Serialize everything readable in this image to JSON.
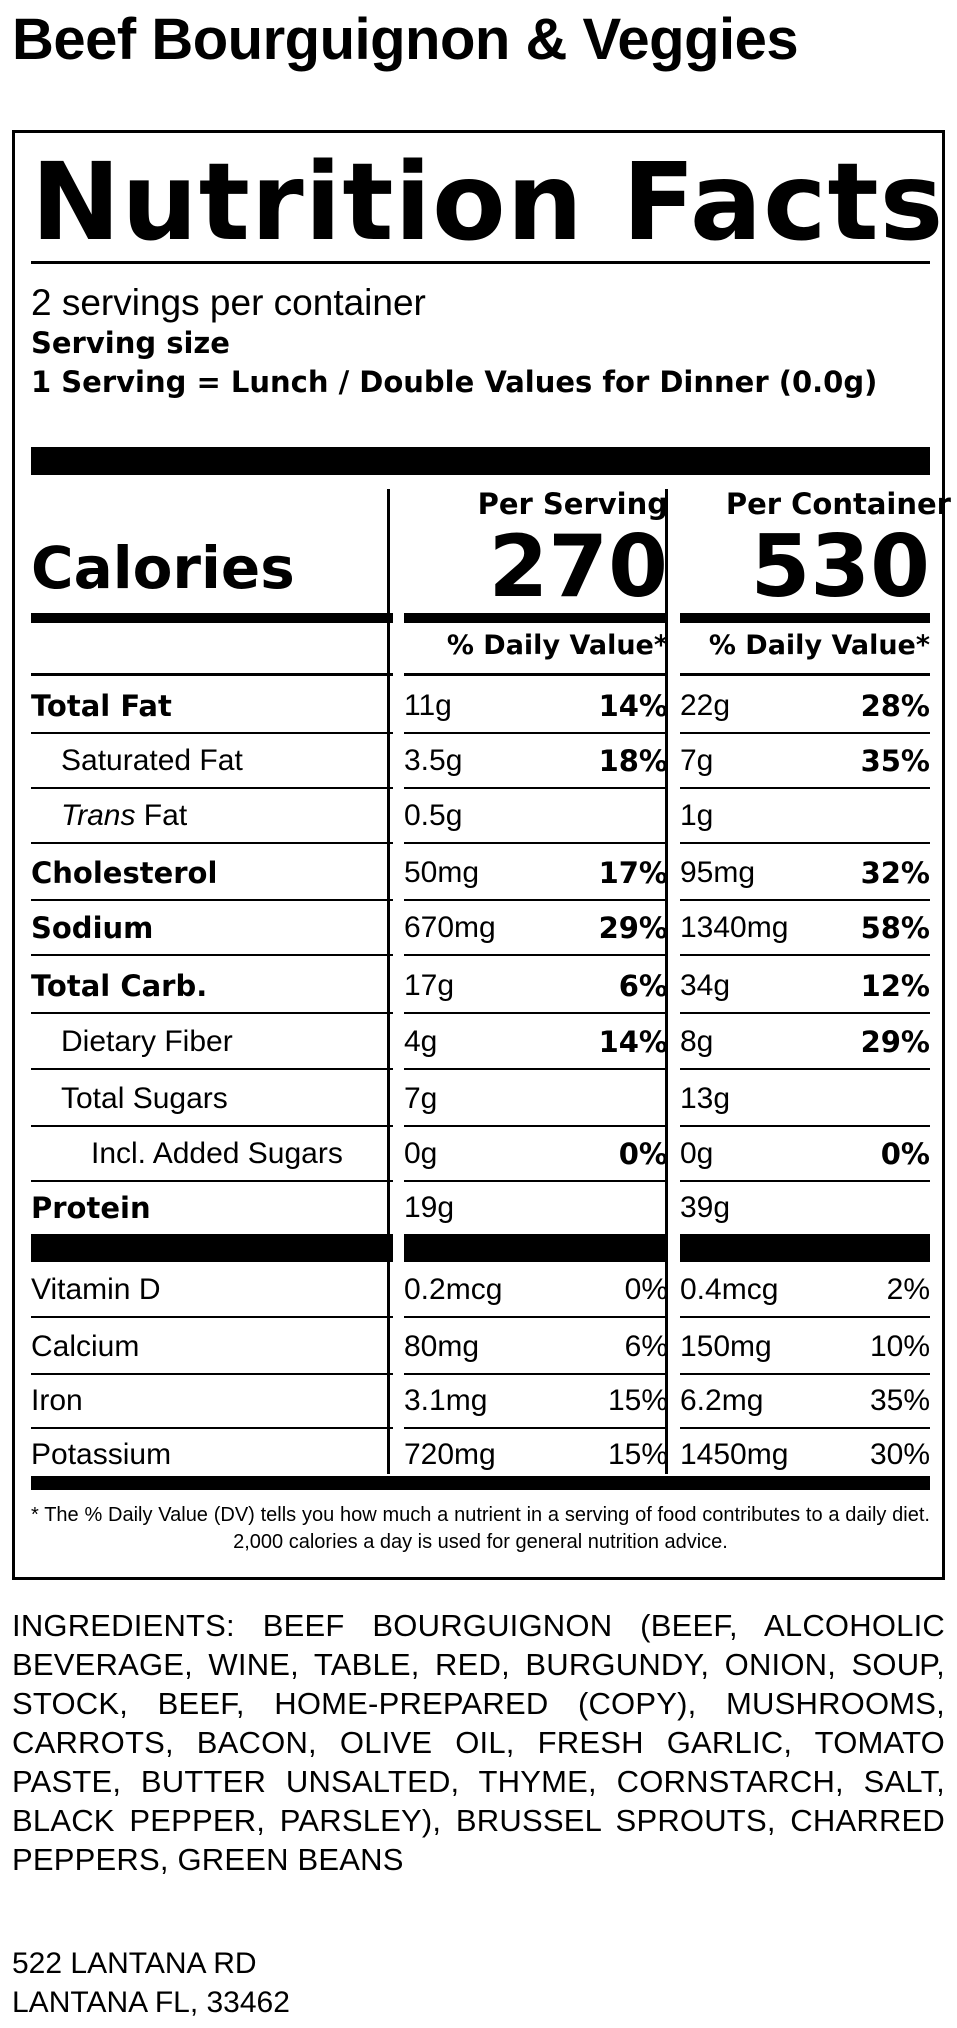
{
  "product_title": "Beef Bourguignon & Veggies",
  "label": {
    "heading": "Nutrition Facts",
    "servings_per_container": "2 servings per container",
    "serving_size_label": "Serving size",
    "serving_size_value": "1 Serving = Lunch / Double Values for Dinner (0.0g)",
    "columns": [
      {
        "header": "Per Serving",
        "calories": "270",
        "dv_header": "% Daily Value*"
      },
      {
        "header": "Per Container",
        "calories": "530",
        "dv_header": "% Daily Value*"
      }
    ],
    "calories_label": "Calories",
    "nutrients": [
      {
        "name": "Total Fat",
        "bold": true,
        "indent": 0,
        "serving": {
          "amount": "11g",
          "dv": "14%"
        },
        "container": {
          "amount": "22g",
          "dv": "28%"
        }
      },
      {
        "name": "Saturated Fat",
        "bold": false,
        "indent": 1,
        "serving": {
          "amount": "3.5g",
          "dv": "18%"
        },
        "container": {
          "amount": "7g",
          "dv": "35%"
        }
      },
      {
        "name_italic": "Trans",
        "name": " Fat",
        "bold": false,
        "indent": 1,
        "serving": {
          "amount": "0.5g",
          "dv": ""
        },
        "container": {
          "amount": "1g",
          "dv": ""
        }
      },
      {
        "name": "Cholesterol",
        "bold": true,
        "indent": 0,
        "serving": {
          "amount": "50mg",
          "dv": "17%"
        },
        "container": {
          "amount": "95mg",
          "dv": "32%"
        }
      },
      {
        "name": "Sodium",
        "bold": true,
        "indent": 0,
        "serving": {
          "amount": "670mg",
          "dv": "29%"
        },
        "container": {
          "amount": "1340mg",
          "dv": "58%"
        }
      },
      {
        "name": "Total Carb.",
        "bold": true,
        "indent": 0,
        "serving": {
          "amount": "17g",
          "dv": "6%"
        },
        "container": {
          "amount": "34g",
          "dv": "12%"
        }
      },
      {
        "name": "Dietary Fiber",
        "bold": false,
        "indent": 1,
        "serving": {
          "amount": "4g",
          "dv": "14%"
        },
        "container": {
          "amount": "8g",
          "dv": "29%"
        }
      },
      {
        "name": "Total Sugars",
        "bold": false,
        "indent": 1,
        "serving": {
          "amount": "7g",
          "dv": ""
        },
        "container": {
          "amount": "13g",
          "dv": ""
        }
      },
      {
        "name": "Incl. Added Sugars",
        "bold": false,
        "indent": 2,
        "serving": {
          "amount": "0g",
          "dv": "0%"
        },
        "container": {
          "amount": "0g",
          "dv": "0%"
        }
      },
      {
        "name": "Protein",
        "bold": true,
        "indent": 0,
        "serving": {
          "amount": "19g",
          "dv": ""
        },
        "container": {
          "amount": "39g",
          "dv": ""
        }
      }
    ],
    "vitamins": [
      {
        "name": "Vitamin D",
        "serving": {
          "amount": "0.2mcg",
          "dv": "0%"
        },
        "container": {
          "amount": "0.4mcg",
          "dv": "2%"
        }
      },
      {
        "name": "Calcium",
        "serving": {
          "amount": "80mg",
          "dv": "6%"
        },
        "container": {
          "amount": "150mg",
          "dv": "10%"
        }
      },
      {
        "name": "Iron",
        "serving": {
          "amount": "3.1mg",
          "dv": "15%"
        },
        "container": {
          "amount": "6.2mg",
          "dv": "35%"
        }
      },
      {
        "name": "Potassium",
        "serving": {
          "amount": "720mg",
          "dv": "15%"
        },
        "container": {
          "amount": "1450mg",
          "dv": "30%"
        }
      }
    ],
    "footnote": "* The % Daily Value (DV) tells you how much a nutrient in a serving of food contributes to a daily diet. 2,000 calories a day is used for general nutrition advice."
  },
  "ingredients": "INGREDIENTS: BEEF BOURGUIGNON (BEEF, ALCOHOLIC BEVERAGE, WINE, TABLE, RED, BURGUNDY, ONION, SOUP, STOCK, BEEF, HOME-PREPARED (COPY), MUSHROOMS, CARROTS, BACON, OLIVE OIL, FRESH GARLIC, TOMATO PASTE, BUTTER UNSALTED, THYME, CORNSTARCH, SALT, BLACK PEPPER, PARSLEY), BRUSSEL SPROUTS, CHARRED PEPPERS, GREEN BEANS",
  "address": {
    "line1": "522 LANTANA RD",
    "line2": "LANTANA FL, 33462"
  }
}
